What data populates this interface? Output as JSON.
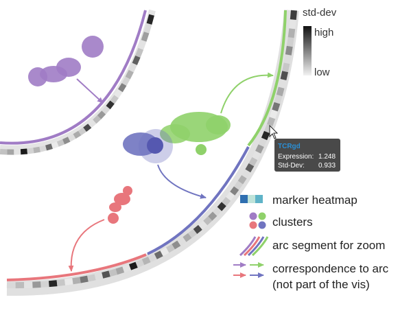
{
  "std_dev_legend": {
    "title": "std-dev",
    "high_label": "high",
    "low_label": "low"
  },
  "tooltip": {
    "gene": "TCRgd",
    "expression_label": "Expression:",
    "expression_value": "1.248",
    "stddev_label": "Std-Dev:",
    "stddev_value": "0.933"
  },
  "legend": {
    "marker_heatmap": "marker heatmap",
    "clusters": "clusters",
    "arc_segment": "arc segment for zoom",
    "correspondence_line1": "correspondence to arc",
    "correspondence_line2": "(not part of the vis)"
  },
  "colors": {
    "purple": "#a07cc5",
    "green": "#8fd16a",
    "blue": "#7074c0",
    "red": "#e8767c",
    "heat_blue": "#2f6fb0",
    "heat_teal": "#5fb3c8",
    "heat_light": "#bfe3d9"
  },
  "arc_heatmap_cells": [
    0.12,
    0.25,
    0.08,
    0.4,
    0.15,
    0.9,
    0.2,
    0.05,
    0.3,
    0.55,
    0.18,
    0.1,
    0.7,
    0.22,
    0.35,
    0.08,
    0.95,
    0.15,
    0.28,
    0.12,
    0.6,
    0.05,
    0.2,
    0.45,
    0.1,
    0.32,
    0.18,
    0.75,
    0.08,
    0.25,
    0.4,
    0.12,
    0.85,
    0.2,
    0.06,
    0.5,
    0.15,
    0.3,
    0.1,
    0.65,
    0.22,
    0.08,
    0.38,
    0.12,
    0.9,
    0.18,
    0.27,
    0.05,
    0.55,
    0.14,
    0.33,
    0.09,
    0.72,
    0.2,
    0.11,
    0.46,
    0.16,
    0.3,
    0.07,
    0.8
  ]
}
